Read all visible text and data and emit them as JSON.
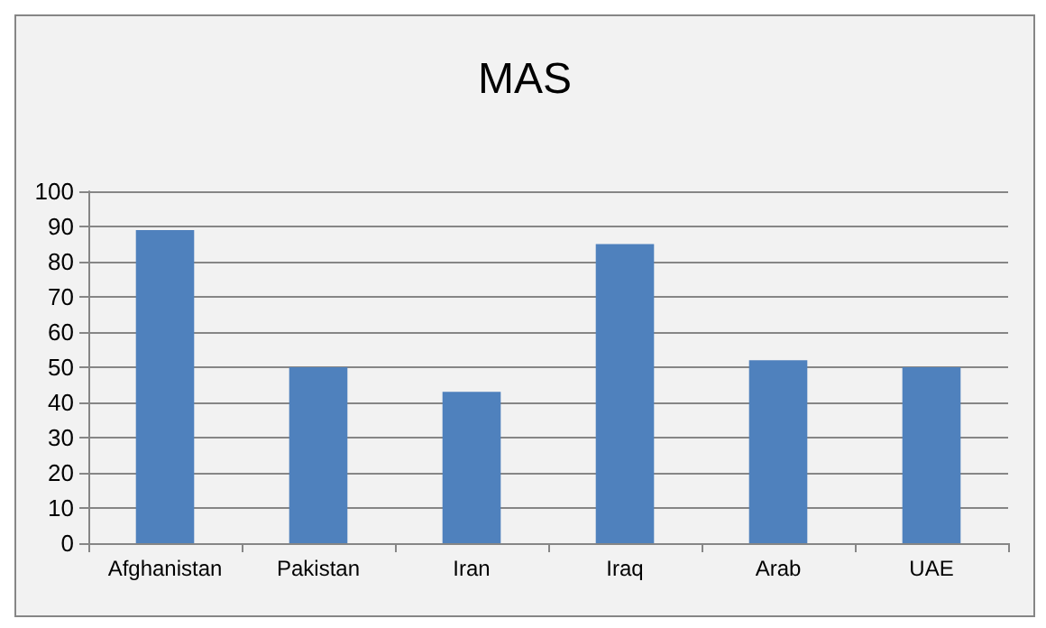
{
  "chart_data": {
    "type": "bar",
    "title": "MAS",
    "categories": [
      "Afghanistan",
      "Pakistan",
      "Iran",
      "Iraq",
      "Arab",
      "UAE"
    ],
    "values": [
      89,
      50,
      43,
      85,
      52,
      50
    ],
    "color": "#4f81bd",
    "ylim": [
      0,
      100
    ],
    "yticks": [
      0,
      10,
      20,
      30,
      40,
      50,
      60,
      70,
      80,
      90,
      100
    ],
    "grid": "y"
  }
}
